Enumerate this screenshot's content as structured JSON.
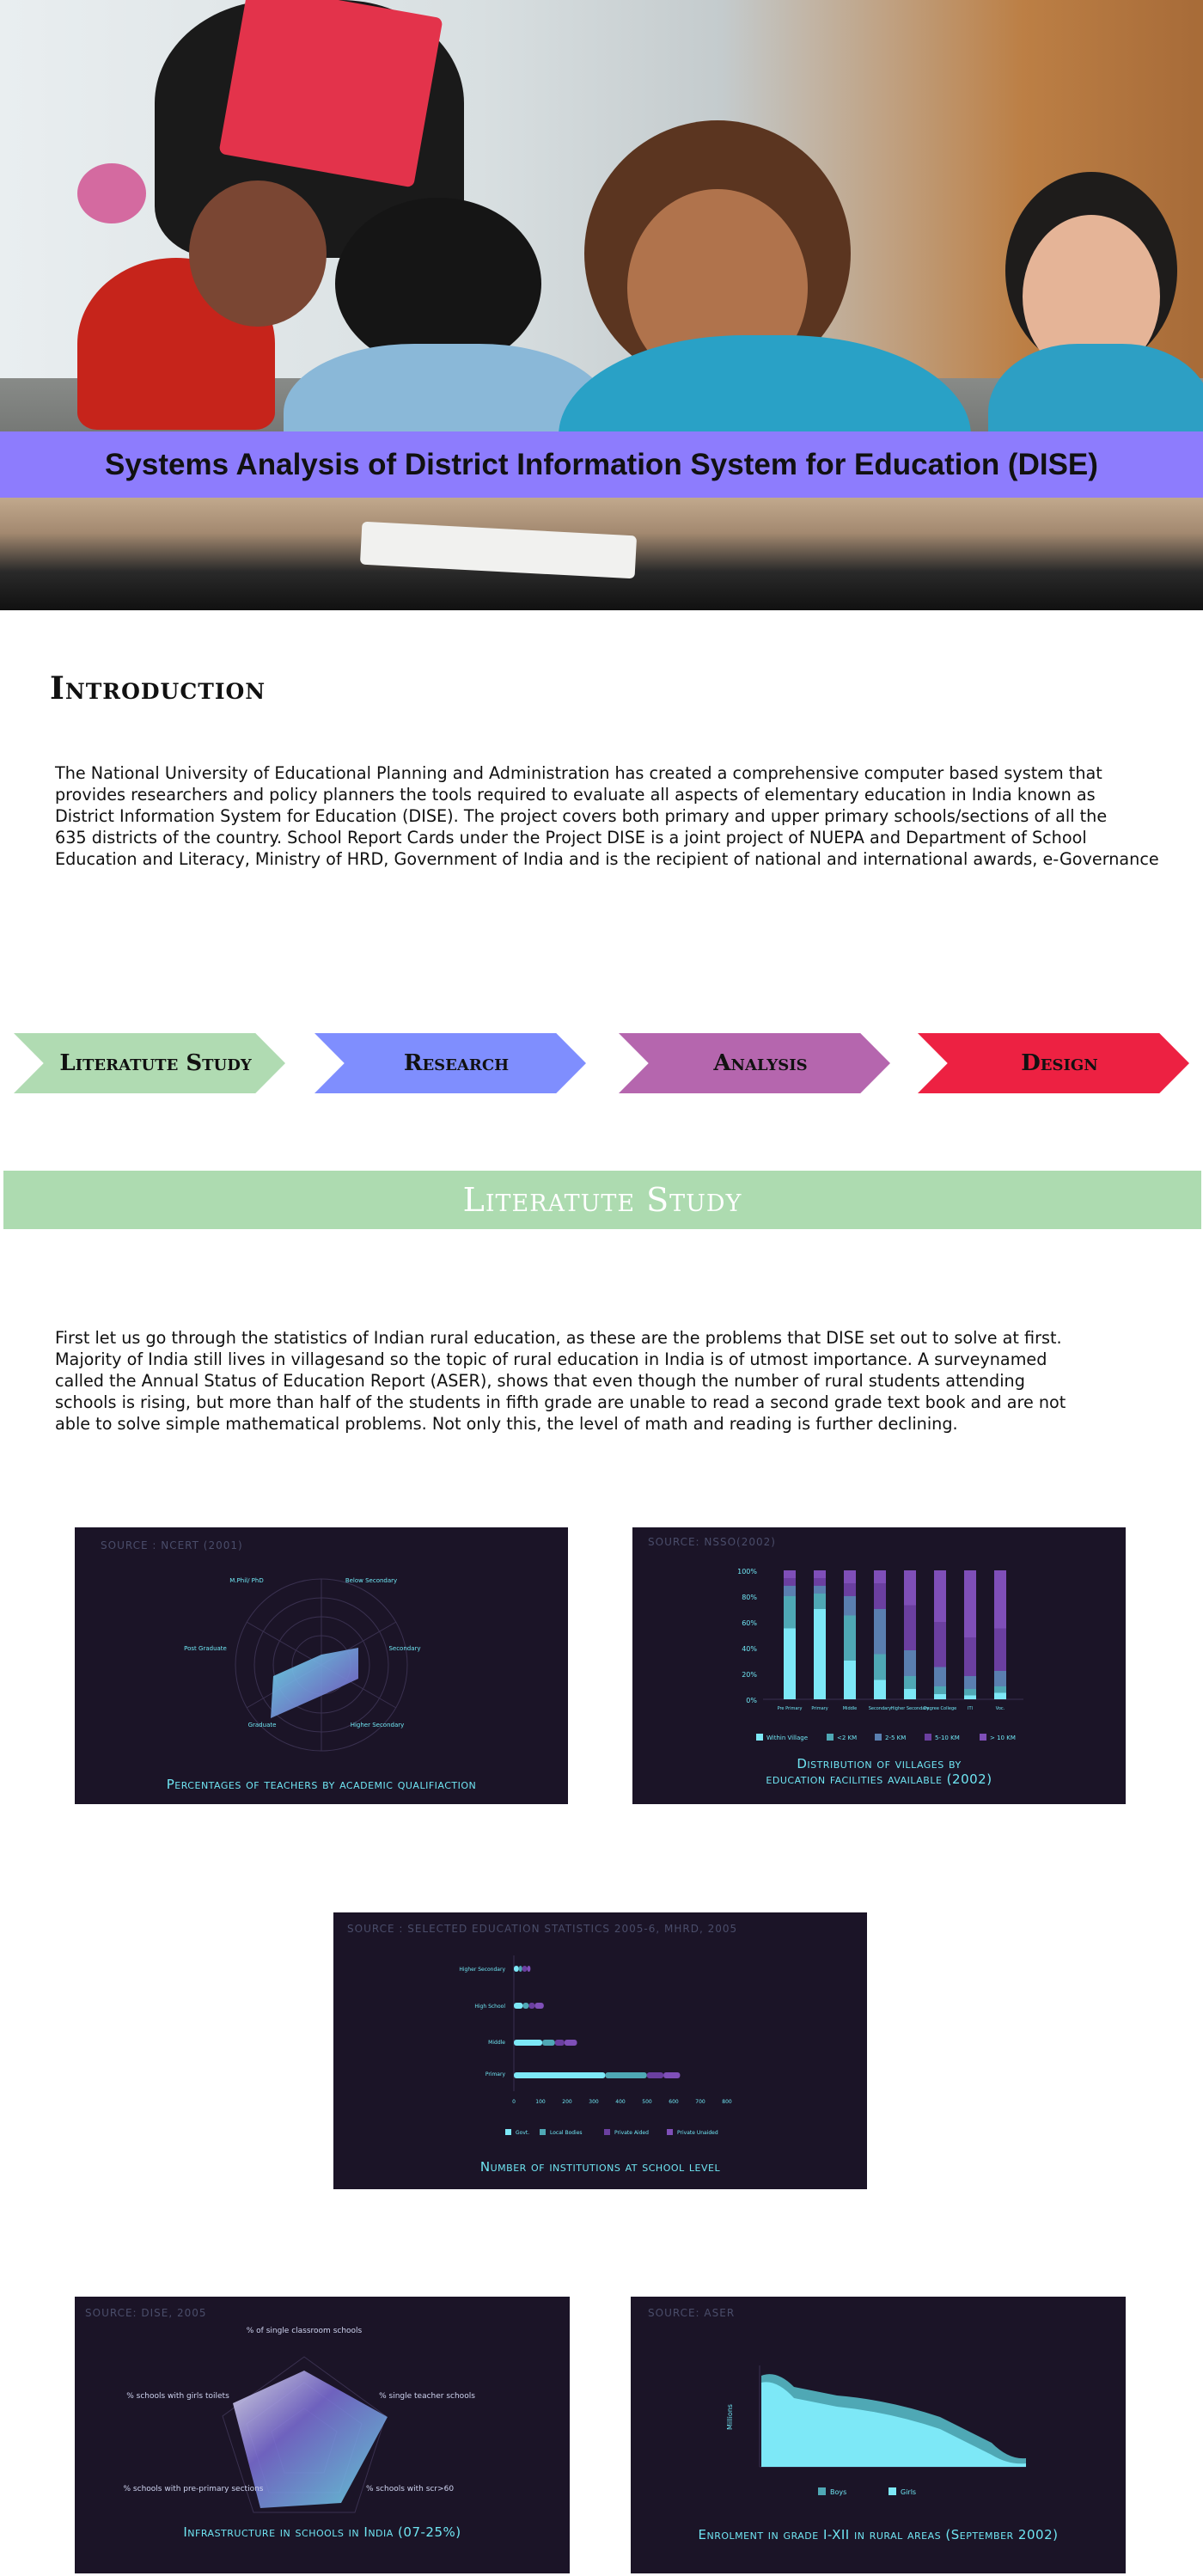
{
  "hero": {
    "title": "Systems Analysis of District Information System for Education (DISE)"
  },
  "introduction": {
    "heading": "Introduction",
    "lines": [
      "The National University of Educational Planning and Administration has created a comprehensive computer based system that",
      "provides researchers and policy planners the tools required to evaluate all aspects of elementary education in India known as",
      "District Information System for Education (DISE). The project covers both primary and upper primary schools/sections of all the",
      "635 districts of the country. School Report Cards under the Project DISE is a joint project of NUEPA and Department of School",
      "Education and Literacy, Ministry of HRD, Government of India and is the recipient of national and international awards, e-Governance"
    ]
  },
  "process_steps": [
    {
      "label": "Literatute Study",
      "color": "#b0dbb2"
    },
    {
      "label": "Research",
      "color": "#7f8efe"
    },
    {
      "label": "Analysis",
      "color": "#b566ae"
    },
    {
      "label": "Design",
      "color": "#ed2142"
    }
  ],
  "literature_study": {
    "heading": "Literatute Study",
    "lines": [
      "First let us go through the statistics of Indian rural education, as these are the problems that DISE set out to solve at first.",
      "Majority of India still lives in villagesand so the topic of rural education in India is of utmost importance. A surveynamed",
      "called the Annual Status of Education Report (ASER), shows that even though the number of rural students attending",
      "schools is rising, but more than half of the students in fifth grade are unable to read a second grade text book and are not",
      "able to solve simple mathematical problems. Not only this, the level of math and reading is further declining."
    ]
  },
  "colors": {
    "panel_bg": "#1b1427",
    "accent_cyan": "#6fe5f2",
    "purple": "#6b3fa0",
    "teal": "#4fa8b5"
  },
  "charts": {
    "teachers": {
      "source": "SOURCE : NCERT (2001)",
      "caption": "Percentages of teachers by academic qualifiaction",
      "axes": [
        "M.Phil/ PhD",
        "Below Secondary",
        "Secondary",
        "Higher Secondary",
        "Graduate",
        "Post Graduate"
      ]
    },
    "villages": {
      "source": "SOURCE: NSSO(2002)",
      "caption_lines": [
        "Distribution of villages by",
        "education facilities available (2002)"
      ],
      "y_ticks": [
        "100%",
        "80%",
        "60%",
        "40%",
        "20%",
        "0%"
      ],
      "categories": [
        "Pre Primary",
        "Primary",
        "Middle",
        "Secondary",
        "Higher Secondary",
        "Degree College",
        "ITI",
        "Voc."
      ],
      "legend": [
        "Within Village",
        "<2 KM",
        "2-5 KM",
        "5-10 KM",
        "> 10 KM"
      ]
    },
    "institutions": {
      "source": "SOURCE : SELECTED EDUCATION STATISTICS 2005-6, MHRD, 2005",
      "caption": "Number of institutions at school level",
      "categories": [
        "Higher Secondary",
        "High School",
        "Middle",
        "Primary"
      ],
      "x_ticks": [
        "0",
        "100",
        "200",
        "300",
        "400",
        "500",
        "600",
        "700",
        "800"
      ],
      "legend": [
        "Govt.",
        "Local Bodies",
        "Private Aided",
        "Private Unaided"
      ]
    },
    "infrastructure": {
      "source": "SOURCE: DISE, 2005",
      "caption": "Infrastructure in schools in India (07-25%)",
      "axes": [
        "% of single classroom schools",
        "% single teacher schools",
        "% schools with scr>60",
        "% schools with pre-primary sections",
        "% schools with girls toilets"
      ]
    },
    "enrolment": {
      "source": "SOURCE: ASER",
      "caption": "Enrolment in grade I-XII in rural areas (September 2002)",
      "ylabel": "Millions",
      "legend": [
        "Boys",
        "Girls"
      ]
    }
  }
}
